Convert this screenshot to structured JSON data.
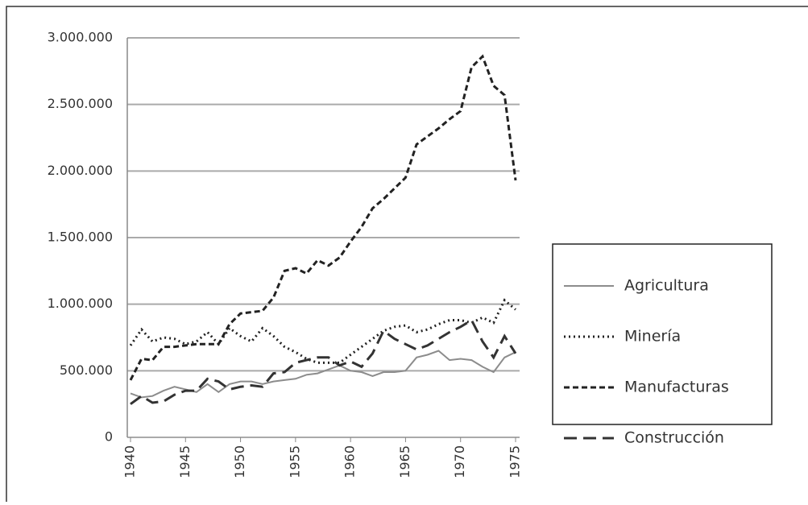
{
  "chart_data": {
    "type": "line",
    "x": [
      1940,
      1941,
      1942,
      1943,
      1944,
      1945,
      1946,
      1947,
      1948,
      1949,
      1950,
      1951,
      1952,
      1953,
      1954,
      1955,
      1956,
      1957,
      1958,
      1959,
      1960,
      1961,
      1962,
      1963,
      1964,
      1965,
      1966,
      1967,
      1968,
      1969,
      1970,
      1971,
      1972,
      1973,
      1974,
      1975
    ],
    "xlim": [
      1940,
      1975
    ],
    "xticks": [
      1940,
      1945,
      1950,
      1955,
      1960,
      1965,
      1970,
      1975
    ],
    "ylim": [
      0,
      3000000
    ],
    "yticks": [
      {
        "value": 0,
        "label": "0"
      },
      {
        "value": 500000,
        "label": "500.000"
      },
      {
        "value": 1000000,
        "label": "1.000.000"
      },
      {
        "value": 1500000,
        "label": "1.500.000"
      },
      {
        "value": 2000000,
        "label": "2.000.000"
      },
      {
        "value": 2500000,
        "label": "2.500.000"
      },
      {
        "value": 3000000,
        "label": "3.000.000"
      }
    ],
    "grid": true,
    "legend": "right",
    "series": [
      {
        "name": "Agricultura",
        "color": "#8c8c8c",
        "style": "solid",
        "values": [
          330000,
          300000,
          310000,
          350000,
          380000,
          360000,
          340000,
          400000,
          340000,
          400000,
          420000,
          420000,
          400000,
          420000,
          430000,
          440000,
          470000,
          480000,
          510000,
          540000,
          500000,
          490000,
          460000,
          490000,
          490000,
          500000,
          600000,
          620000,
          650000,
          580000,
          590000,
          580000,
          530000,
          490000,
          600000,
          640000
        ]
      },
      {
        "name": "Minería",
        "color": "#222222",
        "style": "dotted",
        "values": [
          690000,
          810000,
          720000,
          750000,
          740000,
          700000,
          720000,
          790000,
          700000,
          820000,
          760000,
          720000,
          820000,
          760000,
          680000,
          640000,
          590000,
          560000,
          560000,
          560000,
          620000,
          680000,
          740000,
          800000,
          830000,
          840000,
          790000,
          810000,
          850000,
          880000,
          880000,
          860000,
          900000,
          860000,
          1030000,
          960000
        ]
      },
      {
        "name": "Manufacturas",
        "color": "#222222",
        "style": "dashed",
        "values": [
          430000,
          590000,
          580000,
          680000,
          680000,
          690000,
          700000,
          700000,
          700000,
          850000,
          930000,
          940000,
          950000,
          1050000,
          1250000,
          1270000,
          1230000,
          1330000,
          1290000,
          1350000,
          1470000,
          1580000,
          1720000,
          1790000,
          1870000,
          1950000,
          2200000,
          2260000,
          2320000,
          2390000,
          2450000,
          2780000,
          2860000,
          2640000,
          2570000,
          1930000
        ]
      },
      {
        "name": "Construcción",
        "color": "#333333",
        "style": "long-dashed",
        "values": [
          250000,
          310000,
          260000,
          270000,
          320000,
          350000,
          350000,
          440000,
          420000,
          360000,
          380000,
          390000,
          380000,
          480000,
          490000,
          560000,
          580000,
          600000,
          600000,
          540000,
          570000,
          530000,
          630000,
          800000,
          740000,
          700000,
          660000,
          690000,
          740000,
          790000,
          830000,
          880000,
          720000,
          600000,
          760000,
          630000
        ]
      }
    ]
  }
}
